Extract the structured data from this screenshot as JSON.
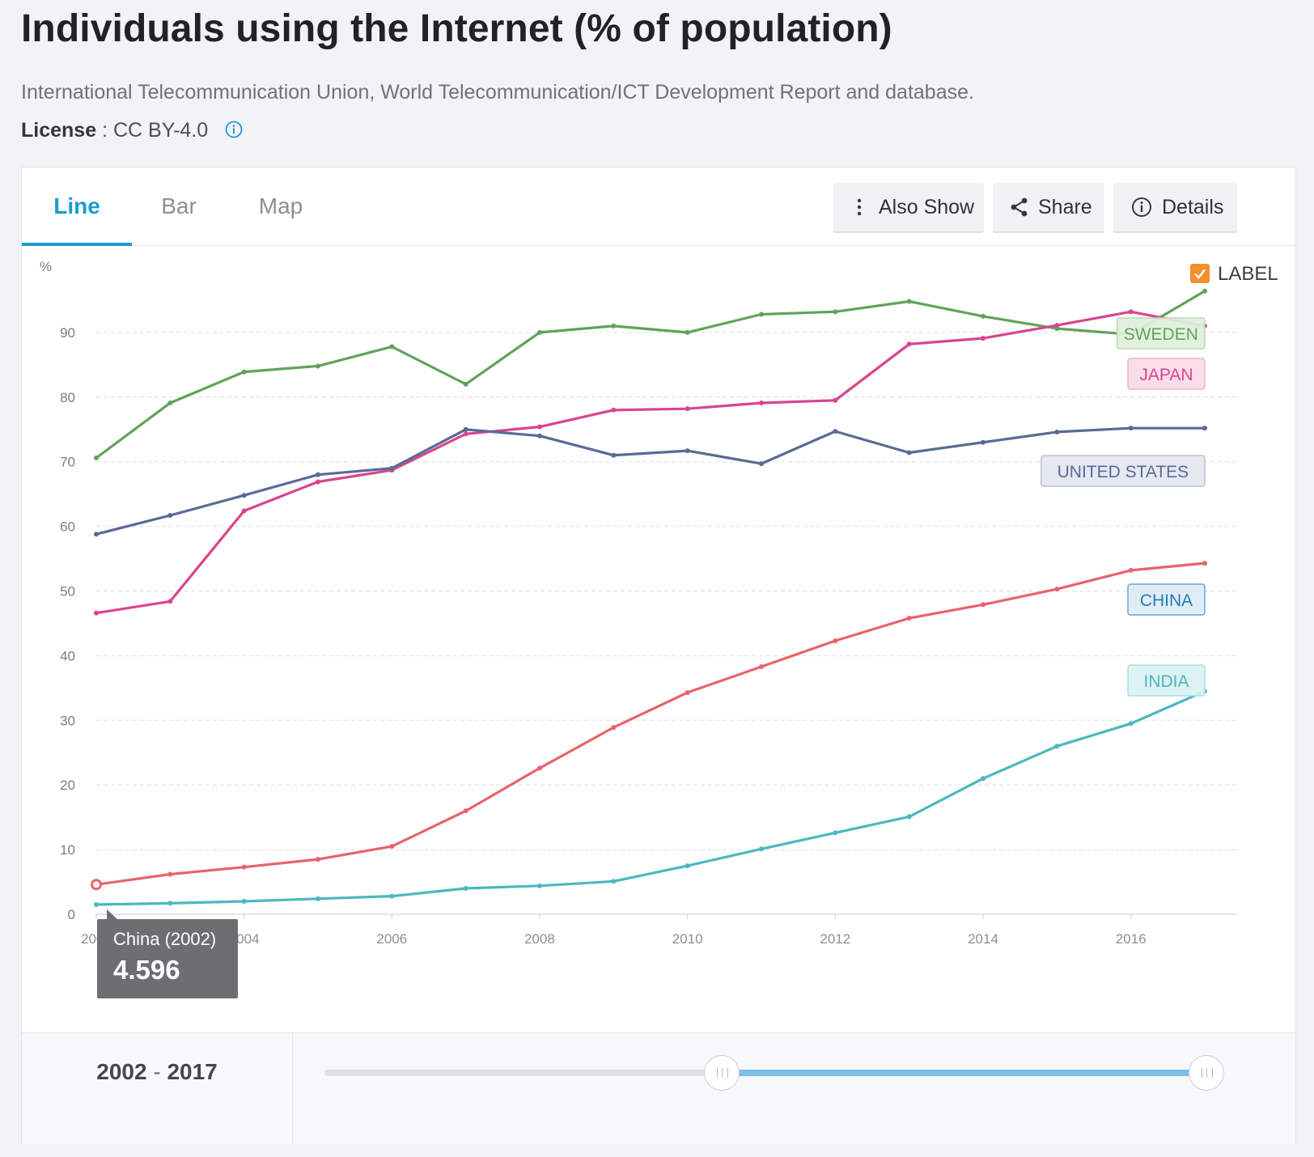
{
  "page": {
    "title": "Individuals using the Internet (% of population)",
    "source": "International Telecommunication Union, World Telecommunication/ICT Development Report and database.",
    "license_label": "License",
    "license_value": "CC BY-4.0",
    "license_icon": "info-icon"
  },
  "tabs": [
    {
      "label": "Line",
      "active": true
    },
    {
      "label": "Bar",
      "active": false
    },
    {
      "label": "Map",
      "active": false
    }
  ],
  "toolbar": {
    "also_show": {
      "label": "Also Show",
      "icon": "vertical-dots-icon"
    },
    "share": {
      "label": "Share",
      "icon": "share-icon"
    },
    "details": {
      "label": "Details",
      "icon": "info-circle-icon"
    }
  },
  "label_toggle": {
    "label": "LABEL",
    "checked": true,
    "color": "#f0912b"
  },
  "tooltip": {
    "title": "China (2002)",
    "value": "4.596"
  },
  "range": {
    "start": "2002",
    "separator": "-",
    "end": "2017",
    "handle_start_fraction": 0.45,
    "handle_end_fraction": 1.0
  },
  "chart_data": {
    "type": "line",
    "ylabel": "%",
    "ylim": [
      0,
      100
    ],
    "yticks": [
      0,
      10,
      20,
      30,
      40,
      50,
      60,
      70,
      80,
      90
    ],
    "xlim": [
      2002,
      2017
    ],
    "xticks": [
      "2002",
      "2004",
      "2006",
      "2008",
      "2010",
      "2012",
      "2014",
      "2016"
    ],
    "grid": true,
    "x": [
      2002,
      2003,
      2004,
      2005,
      2006,
      2007,
      2008,
      2009,
      2010,
      2011,
      2012,
      2013,
      2014,
      2015,
      2016,
      2017
    ],
    "series": [
      {
        "name": "SWEDEN",
        "color": "#5fa35a",
        "values": [
          70.6,
          79.1,
          83.9,
          84.8,
          87.8,
          82.0,
          90.0,
          91.0,
          90.0,
          92.8,
          93.2,
          94.8,
          92.5,
          90.6,
          89.7,
          96.4
        ]
      },
      {
        "name": "JAPAN",
        "color": "#d9448e",
        "values": [
          46.6,
          48.4,
          62.4,
          66.9,
          68.7,
          74.3,
          75.4,
          78.0,
          78.2,
          79.1,
          79.5,
          88.2,
          89.1,
          91.1,
          93.2,
          91.0
        ]
      },
      {
        "name": "UNITED STATES",
        "color": "#5a6a96",
        "values": [
          58.8,
          61.7,
          64.8,
          68.0,
          69.0,
          75.0,
          74.0,
          71.0,
          71.7,
          69.7,
          74.7,
          71.4,
          73.0,
          74.6,
          75.2,
          75.2
        ]
      },
      {
        "name": "CHINA",
        "color": "#e8636a",
        "values": [
          4.596,
          6.2,
          7.3,
          8.5,
          10.5,
          16.0,
          22.6,
          28.9,
          34.3,
          38.3,
          42.3,
          45.8,
          47.9,
          50.3,
          53.2,
          54.3
        ]
      },
      {
        "name": "INDIA",
        "color": "#4bb8c0",
        "values": [
          1.5,
          1.7,
          2.0,
          2.4,
          2.8,
          4.0,
          4.4,
          5.1,
          7.5,
          10.1,
          12.6,
          15.1,
          21.0,
          26.0,
          29.5,
          34.5
        ]
      }
    ],
    "highlight": {
      "series": "CHINA",
      "x": 2002,
      "y": 4.596
    }
  }
}
